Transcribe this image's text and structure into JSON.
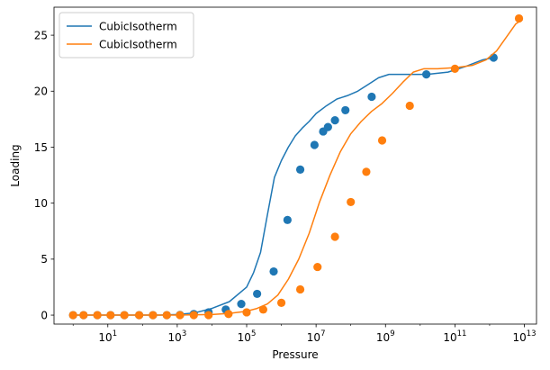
{
  "chart_data": {
    "type": "line",
    "xlabel": "Pressure",
    "ylabel": "Loading",
    "xscale": "log",
    "xlim_log10": [
      -0.55,
      13.35
    ],
    "ylim": [
      -0.8,
      27.5
    ],
    "xticks": [
      {
        "exp": 1,
        "base": "10",
        "sup": "1"
      },
      {
        "exp": 3,
        "base": "10",
        "sup": "3"
      },
      {
        "exp": 5,
        "base": "10",
        "sup": "5"
      },
      {
        "exp": 7,
        "base": "10",
        "sup": "7"
      },
      {
        "exp": 9,
        "base": "10",
        "sup": "9"
      },
      {
        "exp": 11,
        "base": "10",
        "sup": "11"
      },
      {
        "exp": 13,
        "base": "10",
        "sup": "13"
      }
    ],
    "yticks": [
      0,
      5,
      10,
      15,
      20,
      25
    ],
    "legend_position": "top-left",
    "grid": false,
    "series": [
      {
        "name": "CubicIsotherm",
        "color": "#1f77b4",
        "line_log10x": [
          0.0,
          0.5,
          1.0,
          1.5,
          2.0,
          2.5,
          3.0,
          3.5,
          4.0,
          4.5,
          5.0,
          5.2,
          5.4,
          5.6,
          5.8,
          6.0,
          6.2,
          6.4,
          6.6,
          6.8,
          7.0,
          7.3,
          7.6,
          7.9,
          8.2,
          8.5,
          8.8,
          9.1,
          9.6,
          10.2,
          10.8,
          11.3,
          11.8,
          12.1
        ],
        "line_y": [
          0.0,
          0.0,
          0.0,
          0.0,
          0.0,
          0.0,
          0.05,
          0.2,
          0.6,
          1.2,
          2.5,
          3.8,
          5.6,
          9.0,
          12.3,
          13.8,
          15.0,
          16.0,
          16.7,
          17.3,
          18.0,
          18.7,
          19.3,
          19.6,
          20.0,
          20.6,
          21.2,
          21.5,
          21.5,
          21.5,
          21.7,
          22.2,
          22.8,
          23.0
        ],
        "points": [
          {
            "x": 1,
            "y": 0.0
          },
          {
            "x": 2,
            "y": 0.0
          },
          {
            "x": 5,
            "y": 0.0
          },
          {
            "x": 12,
            "y": 0.0
          },
          {
            "x": 30,
            "y": 0.0
          },
          {
            "x": 80,
            "y": 0.0
          },
          {
            "x": 200,
            "y": 0.0
          },
          {
            "x": 500,
            "y": 0.0
          },
          {
            "x": 1200,
            "y": 0.02
          },
          {
            "x": 3000,
            "y": 0.1
          },
          {
            "x": 8000,
            "y": 0.25
          },
          {
            "x": 25000,
            "y": 0.5
          },
          {
            "x": 70000,
            "y": 1.0
          },
          {
            "x": 200000,
            "y": 1.9
          },
          {
            "x": 600000,
            "y": 3.9
          },
          {
            "x": 1500000,
            "y": 8.5
          },
          {
            "x": 3500000,
            "y": 13.0
          },
          {
            "x": 9000000,
            "y": 15.2
          },
          {
            "x": 16000000,
            "y": 16.4
          },
          {
            "x": 22000000,
            "y": 16.8
          },
          {
            "x": 35000000,
            "y": 17.4
          },
          {
            "x": 70000000,
            "y": 18.3
          },
          {
            "x": 400000000,
            "y": 19.5
          },
          {
            "x": 15000000000,
            "y": 21.5
          },
          {
            "x": 1300000000000,
            "y": 23.0
          }
        ]
      },
      {
        "name": "CubicIsotherm",
        "color": "#ff7f0e",
        "line_log10x": [
          0.0,
          1.0,
          2.0,
          3.0,
          4.0,
          4.5,
          5.0,
          5.3,
          5.6,
          5.9,
          6.2,
          6.5,
          6.8,
          7.1,
          7.4,
          7.7,
          8.0,
          8.3,
          8.6,
          8.9,
          9.2,
          9.5,
          9.8,
          10.1,
          10.5,
          11.0,
          11.5,
          11.9,
          12.2,
          12.5,
          12.75,
          12.95
        ],
        "line_y": [
          0.0,
          0.0,
          0.0,
          0.0,
          0.05,
          0.15,
          0.35,
          0.6,
          1.0,
          1.8,
          3.2,
          5.0,
          7.3,
          10.1,
          12.5,
          14.6,
          16.2,
          17.3,
          18.2,
          18.9,
          19.8,
          20.8,
          21.7,
          22.0,
          22.0,
          22.1,
          22.3,
          22.8,
          23.6,
          24.9,
          26.0,
          26.4
        ],
        "points": [
          {
            "x": 1,
            "y": 0.0
          },
          {
            "x": 2,
            "y": 0.0
          },
          {
            "x": 5,
            "y": 0.0
          },
          {
            "x": 12,
            "y": 0.0
          },
          {
            "x": 30,
            "y": 0.0
          },
          {
            "x": 80,
            "y": 0.0
          },
          {
            "x": 200,
            "y": 0.0
          },
          {
            "x": 500,
            "y": 0.0
          },
          {
            "x": 1200,
            "y": 0.0
          },
          {
            "x": 3000,
            "y": 0.0
          },
          {
            "x": 8000,
            "y": 0.0
          },
          {
            "x": 30000,
            "y": 0.1
          },
          {
            "x": 100000,
            "y": 0.25
          },
          {
            "x": 300000,
            "y": 0.5
          },
          {
            "x": 1000000,
            "y": 1.1
          },
          {
            "x": 3500000,
            "y": 2.3
          },
          {
            "x": 11000000,
            "y": 4.3
          },
          {
            "x": 35000000,
            "y": 7.0
          },
          {
            "x": 100000000,
            "y": 10.1
          },
          {
            "x": 280000000,
            "y": 12.8
          },
          {
            "x": 800000000,
            "y": 15.6
          },
          {
            "x": 5000000000,
            "y": 18.7
          },
          {
            "x": 100000000000,
            "y": 22.0
          },
          {
            "x": 7000000000000,
            "y": 26.5
          }
        ]
      }
    ]
  }
}
